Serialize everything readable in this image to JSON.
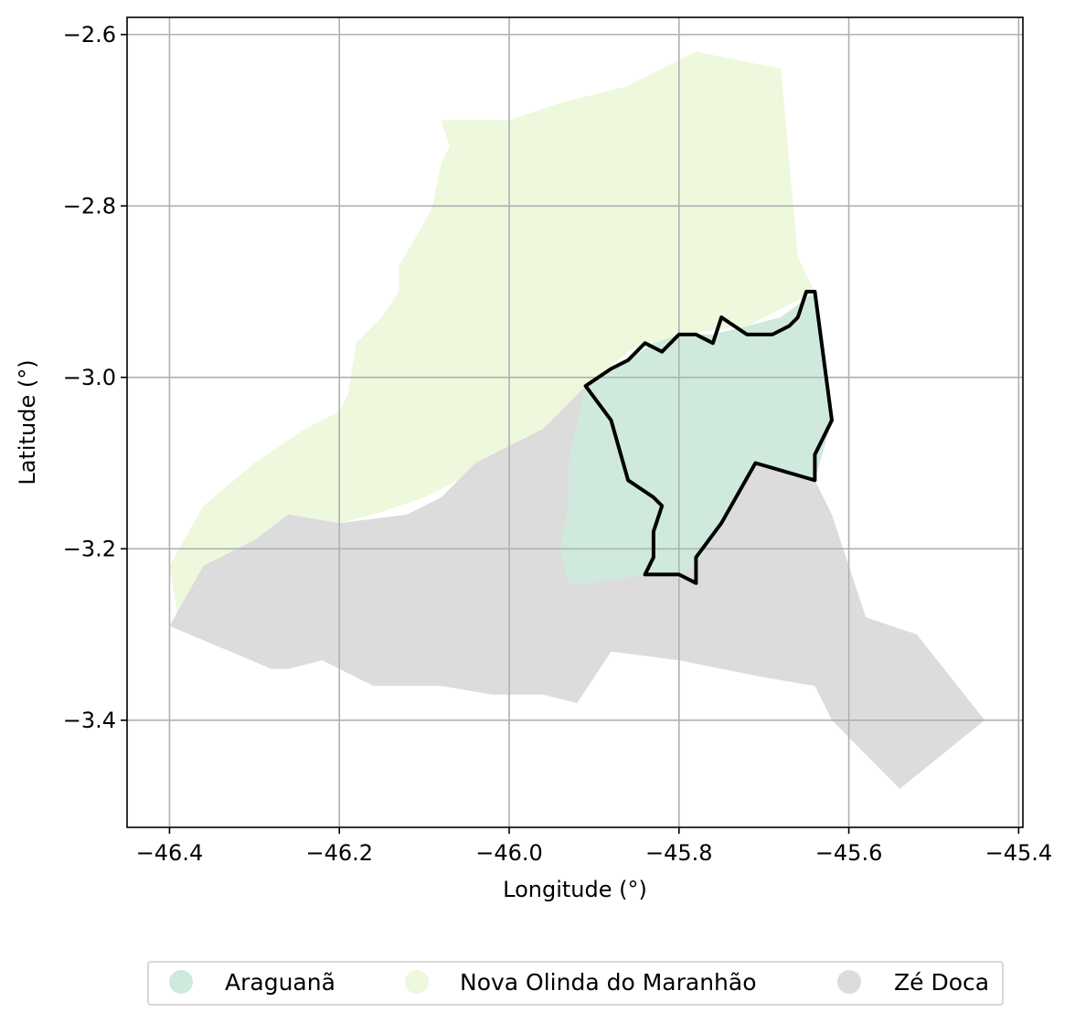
{
  "map": {
    "xlabel": "Longitude (°)",
    "ylabel": "Latitude (°)",
    "xlim": [
      -46.45,
      -45.395
    ],
    "ylim": [
      -3.525,
      -2.58
    ],
    "x_ticks": [
      -46.4,
      -46.2,
      -46.0,
      -45.8,
      -45.6,
      -45.4
    ],
    "x_tick_labels": [
      "−46.4",
      "−46.2",
      "−46.0",
      "−45.8",
      "−45.6",
      "−45.4"
    ],
    "y_ticks": [
      -2.6,
      -2.8,
      -3.0,
      -3.2,
      -3.4
    ],
    "y_tick_labels": [
      "−2.6",
      "−2.8",
      "−3.0",
      "−3.2",
      "−3.4"
    ],
    "grid": true,
    "legend_placement": "bottom-center",
    "highlighted_region": "Araguanã"
  },
  "legend": {
    "items": [
      {
        "label": "Araguanã",
        "color": "#cfeadd"
      },
      {
        "label": "Nova Olinda do Maranhão",
        "color": "#edf8dc"
      },
      {
        "label": "Zé Doca",
        "color": "#dcdcdc"
      }
    ]
  },
  "regions": [
    {
      "name": "Nova Olinda do Maranhão",
      "color": "#edf8dc",
      "coords": [
        [
          -46.39,
          -3.28
        ],
        [
          -46.4,
          -3.22
        ],
        [
          -46.36,
          -3.15
        ],
        [
          -46.3,
          -3.1
        ],
        [
          -46.24,
          -3.06
        ],
        [
          -46.2,
          -3.04
        ],
        [
          -46.19,
          -3.02
        ],
        [
          -46.18,
          -2.96
        ],
        [
          -46.15,
          -2.93
        ],
        [
          -46.13,
          -2.9
        ],
        [
          -46.13,
          -2.87
        ],
        [
          -46.1,
          -2.82
        ],
        [
          -46.09,
          -2.8
        ],
        [
          -46.08,
          -2.75
        ],
        [
          -46.07,
          -2.73
        ],
        [
          -46.08,
          -2.7
        ],
        [
          -46.0,
          -2.7
        ],
        [
          -45.94,
          -2.68
        ],
        [
          -45.86,
          -2.66
        ],
        [
          -45.78,
          -2.62
        ],
        [
          -45.68,
          -2.64
        ],
        [
          -45.66,
          -2.86
        ],
        [
          -45.64,
          -2.9
        ],
        [
          -45.72,
          -2.94
        ],
        [
          -45.8,
          -2.95
        ],
        [
          -45.86,
          -2.97
        ],
        [
          -45.91,
          -3.01
        ],
        [
          -45.96,
          -3.06
        ],
        [
          -46.0,
          -3.08
        ],
        [
          -46.06,
          -3.12
        ],
        [
          -46.1,
          -3.14
        ],
        [
          -46.16,
          -3.16
        ],
        [
          -46.24,
          -3.18
        ],
        [
          -46.32,
          -3.2
        ],
        [
          -46.39,
          -3.28
        ]
      ]
    },
    {
      "name": "Zé Doca",
      "color": "#dcdcdc",
      "coords": [
        [
          -46.4,
          -3.29
        ],
        [
          -46.36,
          -3.22
        ],
        [
          -46.3,
          -3.19
        ],
        [
          -46.26,
          -3.16
        ],
        [
          -46.2,
          -3.17
        ],
        [
          -46.12,
          -3.16
        ],
        [
          -46.08,
          -3.14
        ],
        [
          -46.04,
          -3.1
        ],
        [
          -46.0,
          -3.08
        ],
        [
          -45.96,
          -3.06
        ],
        [
          -45.91,
          -3.01
        ],
        [
          -45.9,
          -3.05
        ],
        [
          -45.85,
          -3.1
        ],
        [
          -45.8,
          -3.12
        ],
        [
          -45.71,
          -3.1
        ],
        [
          -45.64,
          -3.12
        ],
        [
          -45.62,
          -3.16
        ],
        [
          -45.6,
          -3.22
        ],
        [
          -45.58,
          -3.28
        ],
        [
          -45.52,
          -3.3
        ],
        [
          -45.44,
          -3.4
        ],
        [
          -45.54,
          -3.48
        ],
        [
          -45.57,
          -3.45
        ],
        [
          -45.62,
          -3.4
        ],
        [
          -45.64,
          -3.36
        ],
        [
          -45.7,
          -3.35
        ],
        [
          -45.8,
          -3.33
        ],
        [
          -45.88,
          -3.32
        ],
        [
          -45.92,
          -3.38
        ],
        [
          -45.96,
          -3.37
        ],
        [
          -46.02,
          -3.37
        ],
        [
          -46.08,
          -3.36
        ],
        [
          -46.16,
          -3.36
        ],
        [
          -46.22,
          -3.33
        ],
        [
          -46.26,
          -3.34
        ],
        [
          -46.28,
          -3.34
        ],
        [
          -46.4,
          -3.29
        ]
      ]
    },
    {
      "name": "Araguanã",
      "color": "#cfeadd",
      "coords": [
        [
          -45.91,
          -3.01
        ],
        [
          -45.86,
          -2.98
        ],
        [
          -45.83,
          -2.96
        ],
        [
          -45.8,
          -2.95
        ],
        [
          -45.76,
          -2.95
        ],
        [
          -45.72,
          -2.94
        ],
        [
          -45.68,
          -2.93
        ],
        [
          -45.64,
          -2.9
        ],
        [
          -45.62,
          -3.05
        ],
        [
          -45.64,
          -3.12
        ],
        [
          -45.71,
          -3.1
        ],
        [
          -45.74,
          -3.16
        ],
        [
          -45.78,
          -3.22
        ],
        [
          -45.8,
          -3.23
        ],
        [
          -45.84,
          -3.23
        ],
        [
          -45.9,
          -3.24
        ],
        [
          -45.93,
          -3.24
        ],
        [
          -45.94,
          -3.2
        ],
        [
          -45.93,
          -3.15
        ],
        [
          -45.93,
          -3.1
        ],
        [
          -45.91,
          -3.01
        ]
      ]
    }
  ],
  "highlight_outline": [
    [
      -45.91,
      -3.01
    ],
    [
      -45.88,
      -2.99
    ],
    [
      -45.86,
      -2.98
    ],
    [
      -45.84,
      -2.96
    ],
    [
      -45.82,
      -2.97
    ],
    [
      -45.8,
      -2.95
    ],
    [
      -45.78,
      -2.95
    ],
    [
      -45.76,
      -2.96
    ],
    [
      -45.75,
      -2.93
    ],
    [
      -45.72,
      -2.95
    ],
    [
      -45.69,
      -2.95
    ],
    [
      -45.67,
      -2.94
    ],
    [
      -45.66,
      -2.93
    ],
    [
      -45.65,
      -2.9
    ],
    [
      -45.64,
      -2.9
    ],
    [
      -45.62,
      -3.05
    ],
    [
      -45.64,
      -3.09
    ],
    [
      -45.64,
      -3.12
    ],
    [
      -45.71,
      -3.1
    ],
    [
      -45.75,
      -3.17
    ],
    [
      -45.78,
      -3.21
    ],
    [
      -45.78,
      -3.24
    ],
    [
      -45.8,
      -3.23
    ],
    [
      -45.84,
      -3.23
    ],
    [
      -45.83,
      -3.21
    ],
    [
      -45.83,
      -3.18
    ],
    [
      -45.82,
      -3.15
    ],
    [
      -45.83,
      -3.14
    ],
    [
      -45.86,
      -3.12
    ],
    [
      -45.88,
      -3.05
    ],
    [
      -45.91,
      -3.01
    ]
  ]
}
